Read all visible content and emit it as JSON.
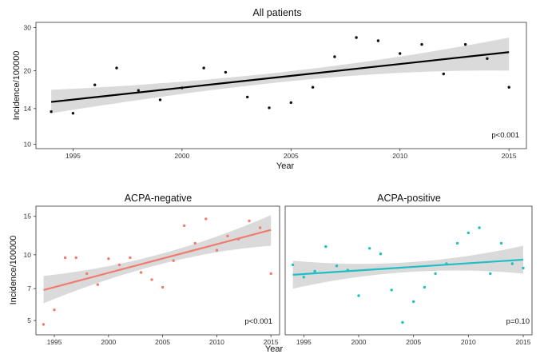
{
  "chart_data": [
    {
      "type": "scatter",
      "title": "All patients",
      "xlabel": "Year",
      "ylabel": "Incidence/100000",
      "y_scale": "log",
      "xlim": [
        1993.3,
        2015.8
      ],
      "ylim": [
        9.6,
        31.5
      ],
      "x_ticks": [
        "1995",
        "2000",
        "2005",
        "2010",
        "2015"
      ],
      "y_ticks": [
        "10",
        "14",
        "20",
        "30"
      ],
      "p_value": "p<0.001",
      "colors": {
        "points": "#111111",
        "line": "#000000",
        "band": "#d3d3d3"
      },
      "x": [
        1994,
        1995,
        1996,
        1997,
        1998,
        1999,
        2000,
        2001,
        2002,
        2003,
        2004,
        2005,
        2006,
        2007,
        2008,
        2009,
        2010,
        2011,
        2012,
        2013,
        2014,
        2015
      ],
      "y": [
        13.6,
        13.4,
        17.5,
        20.5,
        16.6,
        15.2,
        17.0,
        20.5,
        19.7,
        15.6,
        14.1,
        14.8,
        17.1,
        22.8,
        27.3,
        26.5,
        23.5,
        25.6,
        19.4,
        25.6,
        22.4,
        17.1
      ],
      "fit": {
        "x": [
          1994,
          2015
        ],
        "y": [
          14.9,
          23.8
        ],
        "lower": [
          13.4,
          20.0
        ],
        "upper": [
          16.7,
          27.3
        ]
      }
    },
    {
      "type": "scatter",
      "title": "ACPA-negative",
      "xlabel": "Year",
      "ylabel": "Incidence/100000",
      "y_scale": "log",
      "xlim": [
        1993.3,
        2015.8
      ],
      "ylim": [
        4.3,
        16.7
      ],
      "x_ticks": [
        "1995",
        "2000",
        "2005",
        "2010",
        "2015"
      ],
      "y_ticks": [
        "5",
        "7",
        "10",
        "15"
      ],
      "p_value": "p<0.001",
      "colors": {
        "points": "#f07c70",
        "line": "#f07c70",
        "band": "#d3d3d3"
      },
      "x": [
        1994,
        1995,
        1996,
        1997,
        1998,
        1999,
        2000,
        2001,
        2002,
        2003,
        2004,
        2005,
        2006,
        2007,
        2008,
        2009,
        2010,
        2011,
        2012,
        2013,
        2014,
        2015
      ],
      "y": [
        4.8,
        5.6,
        9.7,
        9.7,
        8.2,
        7.3,
        9.6,
        9.0,
        9.7,
        8.3,
        7.7,
        7.1,
        9.4,
        13.6,
        11.3,
        14.6,
        10.5,
        12.2,
        11.8,
        14.3,
        13.3,
        8.2
      ],
      "fit": {
        "x": [
          1994,
          2015
        ],
        "y": [
          6.9,
          13.0
        ],
        "lower": [
          6.0,
          11.0
        ],
        "upper": [
          8.0,
          15.2
        ]
      }
    },
    {
      "type": "scatter",
      "title": "ACPA-positive",
      "xlabel": "Year",
      "ylabel": "",
      "y_scale": "log",
      "xlim": [
        1993.3,
        2015.8
      ],
      "ylim": [
        4.3,
        16.7
      ],
      "x_ticks": [
        "1995",
        "2000",
        "2005",
        "2010",
        "2015"
      ],
      "y_ticks": [],
      "p_value": "p=0.10",
      "colors": {
        "points": "#1fbfc4",
        "line": "#1fbfc4",
        "band": "#d3d3d3"
      },
      "x": [
        1994,
        1995,
        1996,
        1997,
        1998,
        1999,
        2000,
        2001,
        2002,
        2003,
        2004,
        2005,
        2006,
        2007,
        2008,
        2009,
        2010,
        2011,
        2012,
        2013,
        2014,
        2015
      ],
      "y": [
        9.0,
        7.9,
        8.4,
        10.9,
        8.9,
        8.5,
        6.5,
        10.7,
        10.1,
        6.9,
        4.9,
        6.1,
        7.1,
        8.2,
        9.1,
        11.3,
        12.6,
        13.3,
        8.2,
        11.3,
        9.1,
        8.7
      ],
      "fit": {
        "x": [
          1994,
          2015
        ],
        "y": [
          8.1,
          9.5
        ],
        "lower": [
          7.0,
          8.2
        ],
        "upper": [
          9.4,
          11.0
        ]
      }
    }
  ]
}
